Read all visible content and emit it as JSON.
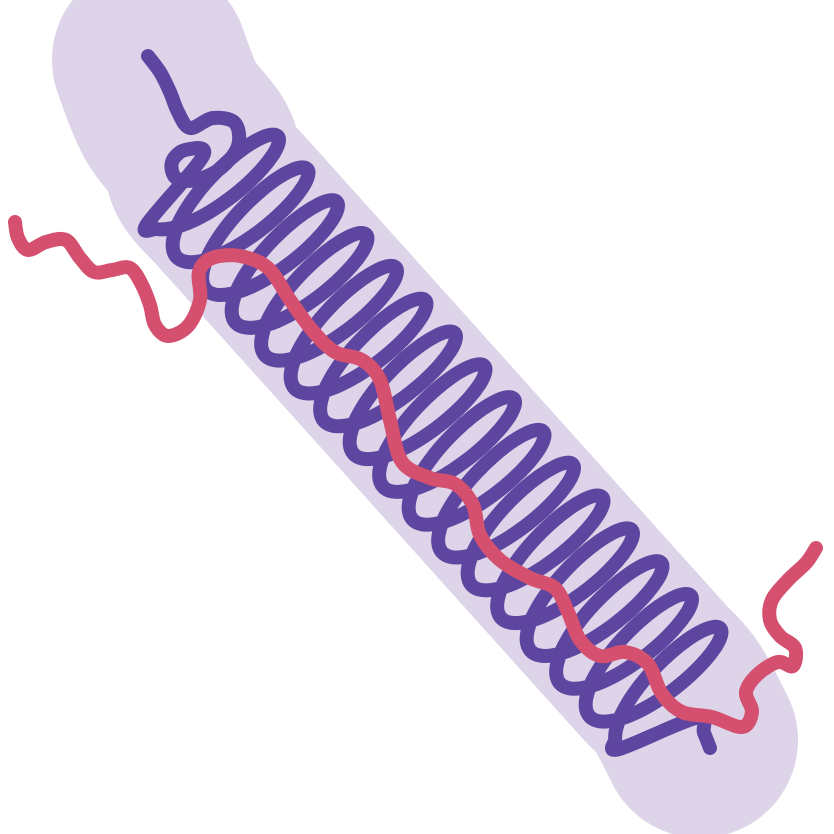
{
  "colors": {
    "background": "#ffffff",
    "halo": "#ddd4ea",
    "coil": "#5e46a0",
    "strand": "#d4506e"
  },
  "icons": {
    "coil": "coiled-fiber-icon",
    "strand": "wavy-strand-icon"
  },
  "coil_loop_count": 16
}
